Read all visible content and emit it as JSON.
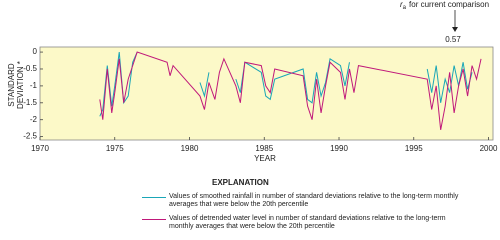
{
  "chart_data": {
    "type": "line",
    "xlabel": "YEAR",
    "ylabel": "STANDARD DEVIATION *",
    "annotation": {
      "symbol": "r",
      "subscript": "a",
      "text": "for current comparison",
      "label": "0.57"
    },
    "legend_title": "EXPLANATION",
    "xlim": [
      1970,
      2000.3
    ],
    "ylim": [
      -2.6,
      0.15
    ],
    "xticks": [
      1970,
      1975,
      1980,
      1985,
      1990,
      1995,
      2000
    ],
    "yticks": [
      0,
      -0.5,
      -1,
      -1.5,
      -2,
      -2.5
    ],
    "background": "#fcf9c8",
    "x": [
      1974.0,
      1974.2,
      1974.5,
      1974.8,
      1975.0,
      1975.3,
      1975.6,
      1975.9,
      1976.2,
      1976.5,
      1978.5,
      1978.7,
      1978.9,
      1980.7,
      1981.0,
      1981.3,
      1981.7,
      1982.0,
      1982.3,
      1983.1,
      1983.4,
      1983.7,
      1984.8,
      1985.1,
      1985.4,
      1985.7,
      1987.6,
      1987.9,
      1988.2,
      1988.5,
      1988.8,
      1989.1,
      1989.4,
      1990.1,
      1990.4,
      1990.7,
      1991.0,
      1991.3,
      1995.9,
      1996.2,
      1996.5,
      1996.8,
      1997.1,
      1997.4,
      1997.7,
      1998.0,
      1998.3,
      1998.6,
      1998.9,
      1999.2,
      1999.5
    ],
    "series": [
      {
        "name": "Values of smoothed rainfall in number of standard deviations relative to the long-term monthly averages that were below the 20th percentile",
        "color": "#1aa6b7",
        "values": [
          -1.9,
          -1.7,
          -0.4,
          -1.6,
          -1.0,
          0,
          -1.5,
          -1.3,
          -0.3,
          0,
          null,
          null,
          null,
          -0.9,
          -1.3,
          -0.6,
          null,
          null,
          null,
          -0.8,
          -1.2,
          -0.3,
          -0.6,
          -1.3,
          -1.4,
          -0.8,
          -0.5,
          -1.4,
          -1.5,
          -0.6,
          -1.3,
          -0.9,
          -0.2,
          -0.4,
          -1.0,
          -0.3,
          null,
          null,
          -0.5,
          -1.2,
          -0.4,
          -1.5,
          -0.8,
          -1.2,
          -0.4,
          -1.0,
          -0.3,
          -1.1,
          -0.6,
          null,
          null
        ]
      },
      {
        "name": "Values of detrended water level in number of standard deviations relative to the long-term monthly averages that were below the 20th percentile",
        "color": "#c0187a",
        "values": [
          -1.4,
          -2.0,
          -0.5,
          -1.8,
          -1.2,
          -0.2,
          -1.5,
          -0.8,
          -0.4,
          0,
          -0.3,
          -0.7,
          -0.4,
          -1.3,
          -1.7,
          -0.9,
          -1.4,
          -0.6,
          -0.2,
          -1.0,
          -1.5,
          -0.3,
          -0.4,
          -1.0,
          -1.2,
          -0.5,
          -0.7,
          -1.6,
          -2.0,
          -0.8,
          -1.8,
          -1.0,
          -0.3,
          -0.6,
          -1.4,
          -0.5,
          -1.2,
          -0.4,
          -0.8,
          -1.7,
          -1.0,
          -2.3,
          -1.6,
          -0.6,
          -1.8,
          -1.0,
          -0.5,
          -1.3,
          -0.4,
          -0.8,
          -0.2
        ]
      }
    ]
  }
}
